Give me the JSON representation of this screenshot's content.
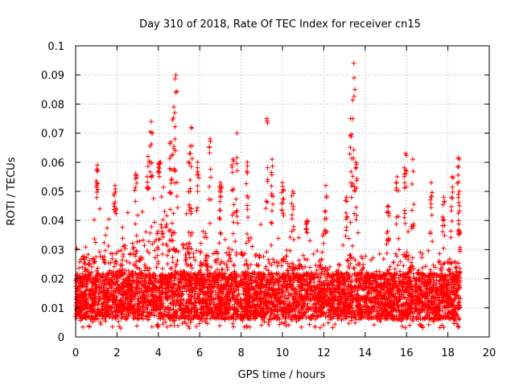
{
  "chart_data": {
    "type": "scatter",
    "title": "Day 310 of 2018, Rate Of TEC Index for receiver cn15",
    "xlabel": "GPS time / hours",
    "ylabel": "ROTI / TECUs",
    "xlim": [
      0,
      20
    ],
    "ylim": [
      0,
      0.1
    ],
    "x_ticks": [
      "0",
      "2",
      "4",
      "6",
      "8",
      "10",
      "12",
      "14",
      "16",
      "18",
      "20"
    ],
    "y_ticks": [
      "0",
      "0.01",
      "0.02",
      "0.03",
      "0.04",
      "0.05",
      "0.06",
      "0.07",
      "0.08",
      "0.09",
      "0.1"
    ],
    "grid": true,
    "marker": "+",
    "series_color": "#ff0000",
    "data_x_range": [
      0,
      18.6
    ],
    "baseline_envelope": [
      [
        0.0,
        0.035
      ],
      [
        0.5,
        0.038
      ],
      [
        1.0,
        0.045
      ],
      [
        1.5,
        0.042
      ],
      [
        2.0,
        0.042
      ],
      [
        2.5,
        0.043
      ],
      [
        3.0,
        0.045
      ],
      [
        3.5,
        0.05
      ],
      [
        4.0,
        0.055
      ],
      [
        4.5,
        0.05
      ],
      [
        5.0,
        0.045
      ],
      [
        5.5,
        0.042
      ],
      [
        6.0,
        0.04
      ],
      [
        6.5,
        0.038
      ],
      [
        7.0,
        0.04
      ],
      [
        7.5,
        0.037
      ],
      [
        8.0,
        0.04
      ],
      [
        8.5,
        0.038
      ],
      [
        9.0,
        0.04
      ],
      [
        9.5,
        0.038
      ],
      [
        10.0,
        0.038
      ],
      [
        10.5,
        0.036
      ],
      [
        11.0,
        0.036
      ],
      [
        11.5,
        0.035
      ],
      [
        12.0,
        0.036
      ],
      [
        12.5,
        0.03
      ],
      [
        13.0,
        0.035
      ],
      [
        13.5,
        0.04
      ],
      [
        14.0,
        0.035
      ],
      [
        14.5,
        0.03
      ],
      [
        15.0,
        0.032
      ],
      [
        15.5,
        0.035
      ],
      [
        16.0,
        0.04
      ],
      [
        16.5,
        0.035
      ],
      [
        17.0,
        0.03
      ],
      [
        17.5,
        0.035
      ],
      [
        18.0,
        0.035
      ],
      [
        18.6,
        0.035
      ]
    ],
    "peaks": [
      {
        "x": 1.05,
        "y": 0.059
      },
      {
        "x": 1.9,
        "y": 0.052
      },
      {
        "x": 2.9,
        "y": 0.056
      },
      {
        "x": 3.5,
        "y": 0.062
      },
      {
        "x": 3.65,
        "y": 0.074
      },
      {
        "x": 4.05,
        "y": 0.06
      },
      {
        "x": 4.6,
        "y": 0.067
      },
      {
        "x": 4.75,
        "y": 0.079
      },
      {
        "x": 4.85,
        "y": 0.09
      },
      {
        "x": 5.5,
        "y": 0.063
      },
      {
        "x": 5.6,
        "y": 0.072
      },
      {
        "x": 5.9,
        "y": 0.06
      },
      {
        "x": 6.5,
        "y": 0.068
      },
      {
        "x": 7.0,
        "y": 0.053
      },
      {
        "x": 7.6,
        "y": 0.061
      },
      {
        "x": 7.8,
        "y": 0.07
      },
      {
        "x": 8.3,
        "y": 0.06
      },
      {
        "x": 9.25,
        "y": 0.075
      },
      {
        "x": 9.5,
        "y": 0.061
      },
      {
        "x": 10.0,
        "y": 0.053
      },
      {
        "x": 10.5,
        "y": 0.05
      },
      {
        "x": 11.2,
        "y": 0.04
      },
      {
        "x": 12.1,
        "y": 0.052
      },
      {
        "x": 13.1,
        "y": 0.048
      },
      {
        "x": 13.3,
        "y": 0.075
      },
      {
        "x": 13.45,
        "y": 0.094
      },
      {
        "x": 13.55,
        "y": 0.06
      },
      {
        "x": 15.1,
        "y": 0.045
      },
      {
        "x": 15.55,
        "y": 0.055
      },
      {
        "x": 15.95,
        "y": 0.063
      },
      {
        "x": 16.3,
        "y": 0.061
      },
      {
        "x": 17.2,
        "y": 0.053
      },
      {
        "x": 17.8,
        "y": 0.048
      },
      {
        "x": 18.2,
        "y": 0.055
      },
      {
        "x": 18.5,
        "y": 0.0615
      },
      {
        "x": 18.55,
        "y": 0.05
      }
    ]
  }
}
